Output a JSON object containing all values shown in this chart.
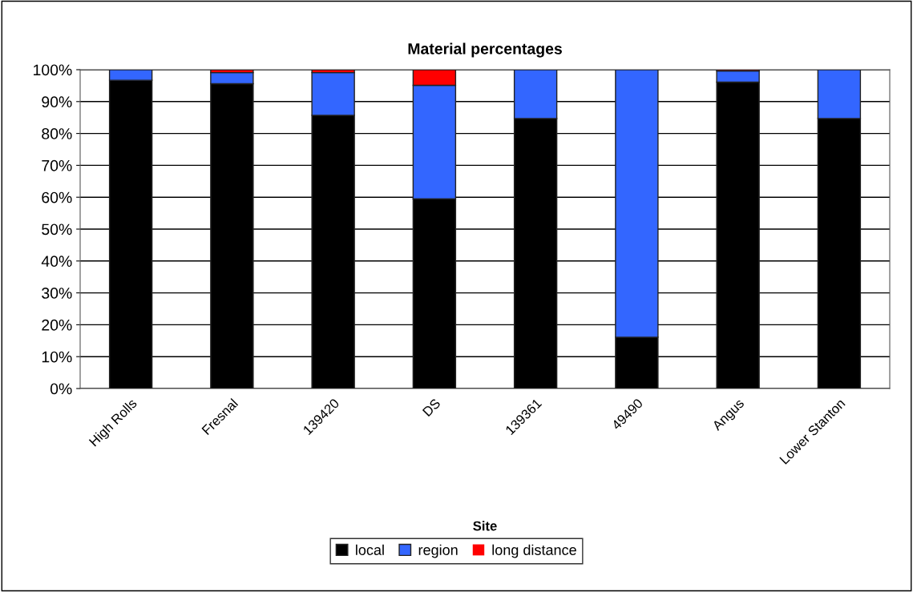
{
  "chart_data": {
    "type": "bar",
    "title": "Material percentages",
    "xlabel": "Site",
    "stacked": true,
    "categories": [
      "High Rolls",
      "Fresnal",
      "139420",
      "DS",
      "139361",
      "49490",
      "Angus",
      "Lower Stanton"
    ],
    "series": [
      {
        "name": "local",
        "color": "#000000",
        "values": [
          96.7,
          95.6,
          85.7,
          59.5,
          84.7,
          16.1,
          96.1,
          84.7
        ]
      },
      {
        "name": "region",
        "color": "#3366ff",
        "values": [
          3.3,
          3.5,
          13.4,
          35.6,
          15.3,
          83.9,
          3.5,
          15.3
        ]
      },
      {
        "name": "long distance",
        "color": "#ff0000",
        "values": [
          0,
          0.9,
          0.9,
          4.9,
          0,
          0,
          0.4,
          0
        ]
      }
    ],
    "ylim": [
      0,
      100
    ],
    "yticks": [
      {
        "value": 0,
        "label": "0%"
      },
      {
        "value": 10,
        "label": "10%"
      },
      {
        "value": 20,
        "label": "20%"
      },
      {
        "value": 30,
        "label": "30%"
      },
      {
        "value": 40,
        "label": "40%"
      },
      {
        "value": 50,
        "label": "50%"
      },
      {
        "value": 60,
        "label": "60%"
      },
      {
        "value": 70,
        "label": "70%"
      },
      {
        "value": 80,
        "label": "80%"
      },
      {
        "value": 90,
        "label": "90%"
      },
      {
        "value": 100,
        "label": "100%"
      }
    ],
    "grid": "y",
    "legend": "bottom"
  }
}
